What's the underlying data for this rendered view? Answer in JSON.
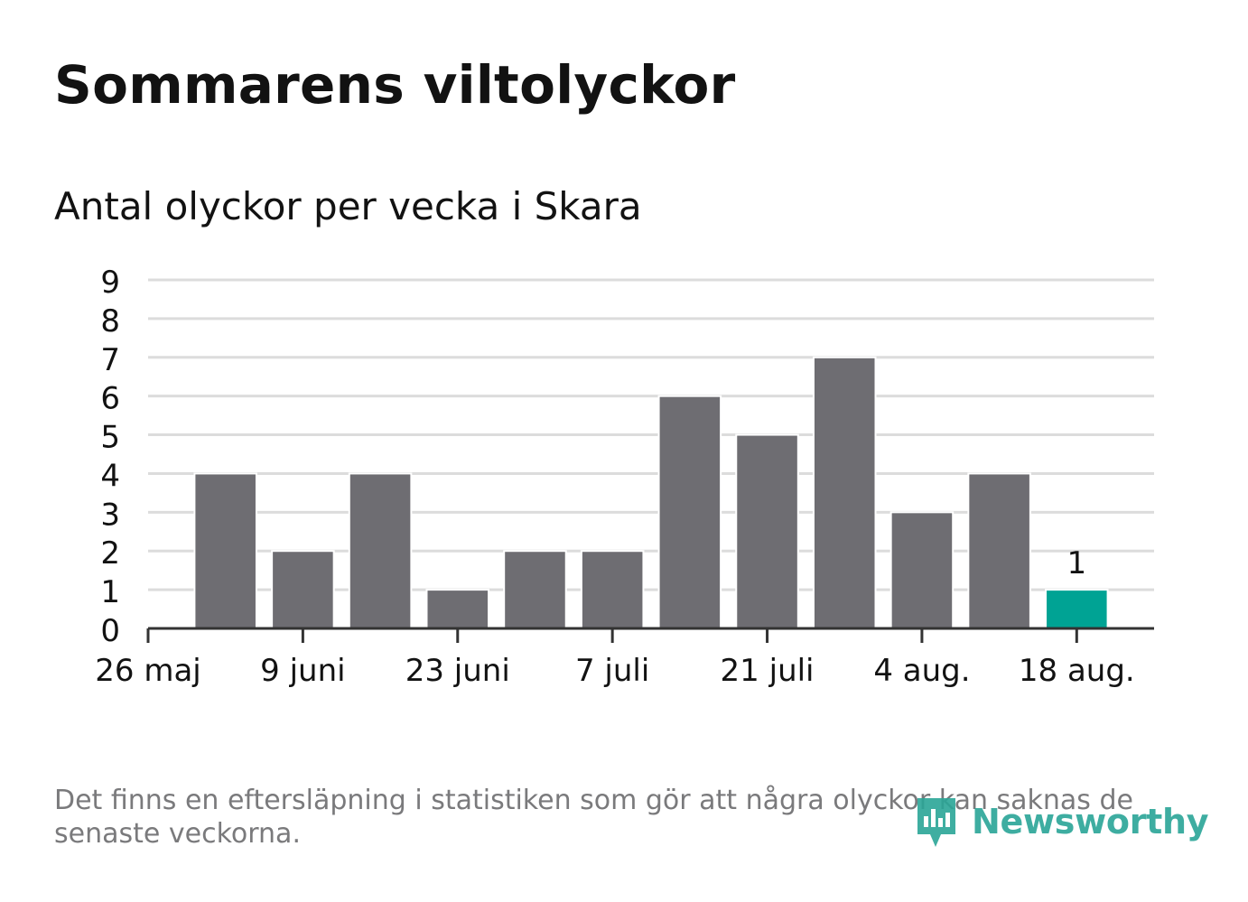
{
  "title": "Sommarens viltolyckor",
  "subtitle": "Antal olyckor per vecka i Skara",
  "footnote": "Det finns en eftersläpning i statistiken som gör att några olyckor kan saknas de senaste veckorna.",
  "logo": {
    "text": "Newsworthy",
    "icon": "newsworthy-logo-icon"
  },
  "colors": {
    "bar": "#6e6d72",
    "highlight": "#00a394",
    "grid": "#dcdcdc",
    "axis": "#333333",
    "text": "#121212",
    "muted": "#7a7a7c"
  },
  "chart_data": {
    "type": "bar",
    "title": "Sommarens viltolyckor",
    "subtitle": "Antal olyckor per vecka i Skara",
    "xlabel": "",
    "ylabel": "",
    "ylim": [
      0,
      9
    ],
    "yticks": [
      0,
      1,
      2,
      3,
      4,
      5,
      6,
      7,
      8,
      9
    ],
    "grid": true,
    "x_tick_labels": [
      "26 maj",
      "9 juni",
      "23 juni",
      "7 juli",
      "21 juli",
      "4 aug.",
      "18 aug."
    ],
    "values": [
      4,
      2,
      4,
      1,
      2,
      2,
      6,
      5,
      7,
      3,
      4,
      1
    ],
    "highlight_index": 11,
    "data_labels": [
      {
        "index": 11,
        "text": "1"
      }
    ]
  }
}
